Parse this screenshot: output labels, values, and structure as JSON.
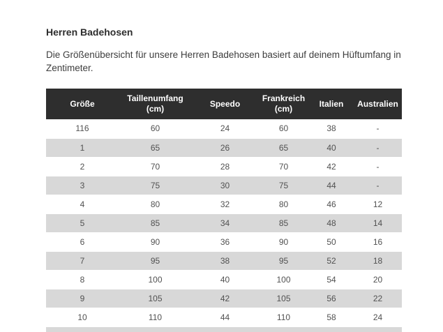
{
  "page": {
    "title": "Herren Badehosen",
    "description": "Die Größenübersicht für unsere Herren Badehosen basiert auf deinem Hüftumfang in Zentimeter."
  },
  "table": {
    "columns": [
      "Größe",
      "Taillenumfang (cm)",
      "Speedo",
      "Frankreich (cm)",
      "Italien",
      "Australien"
    ],
    "rows": [
      [
        "116",
        "60",
        "24",
        "60",
        "38",
        "-"
      ],
      [
        "1",
        "65",
        "26",
        "65",
        "40",
        "-"
      ],
      [
        "2",
        "70",
        "28",
        "70",
        "42",
        "-"
      ],
      [
        "3",
        "75",
        "30",
        "75",
        "44",
        "-"
      ],
      [
        "4",
        "80",
        "32",
        "80",
        "46",
        "12"
      ],
      [
        "5",
        "85",
        "34",
        "85",
        "48",
        "14"
      ],
      [
        "6",
        "90",
        "36",
        "90",
        "50",
        "16"
      ],
      [
        "7",
        "95",
        "38",
        "95",
        "52",
        "18"
      ],
      [
        "8",
        "100",
        "40",
        "100",
        "54",
        "20"
      ],
      [
        "9",
        "105",
        "42",
        "105",
        "56",
        "22"
      ],
      [
        "10",
        "110",
        "44",
        "110",
        "58",
        "24"
      ]
    ],
    "colors": {
      "header_bg": "#2e2e2e",
      "header_text": "#ffffff",
      "stripe_bg": "#d8d8d8",
      "cell_text": "#515151"
    }
  }
}
